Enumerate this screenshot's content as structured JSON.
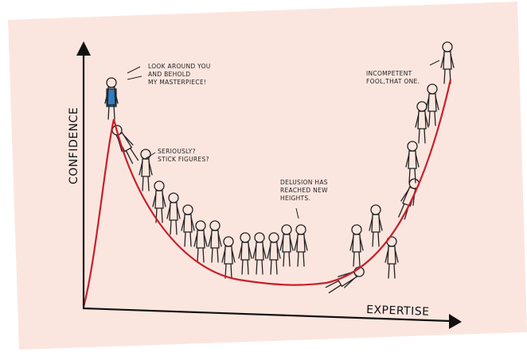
{
  "axes": {
    "y_label": "CONFIDENCE",
    "x_label": "EXPERTISE"
  },
  "captions": [
    {
      "lines": [
        "LOOK AROUND YOU",
        "AND BEHOLD",
        "MY MASTERPIECE!"
      ]
    },
    {
      "lines": [
        "SERIOUSLY?",
        "STICK FIGURES?"
      ]
    },
    {
      "lines": [
        "DELUSION HAS",
        "REACHED NEW",
        "HEIGHTS."
      ]
    },
    {
      "lines": [
        "INCOMPETENT",
        "FOOL,THAT ONE."
      ]
    }
  ]
}
